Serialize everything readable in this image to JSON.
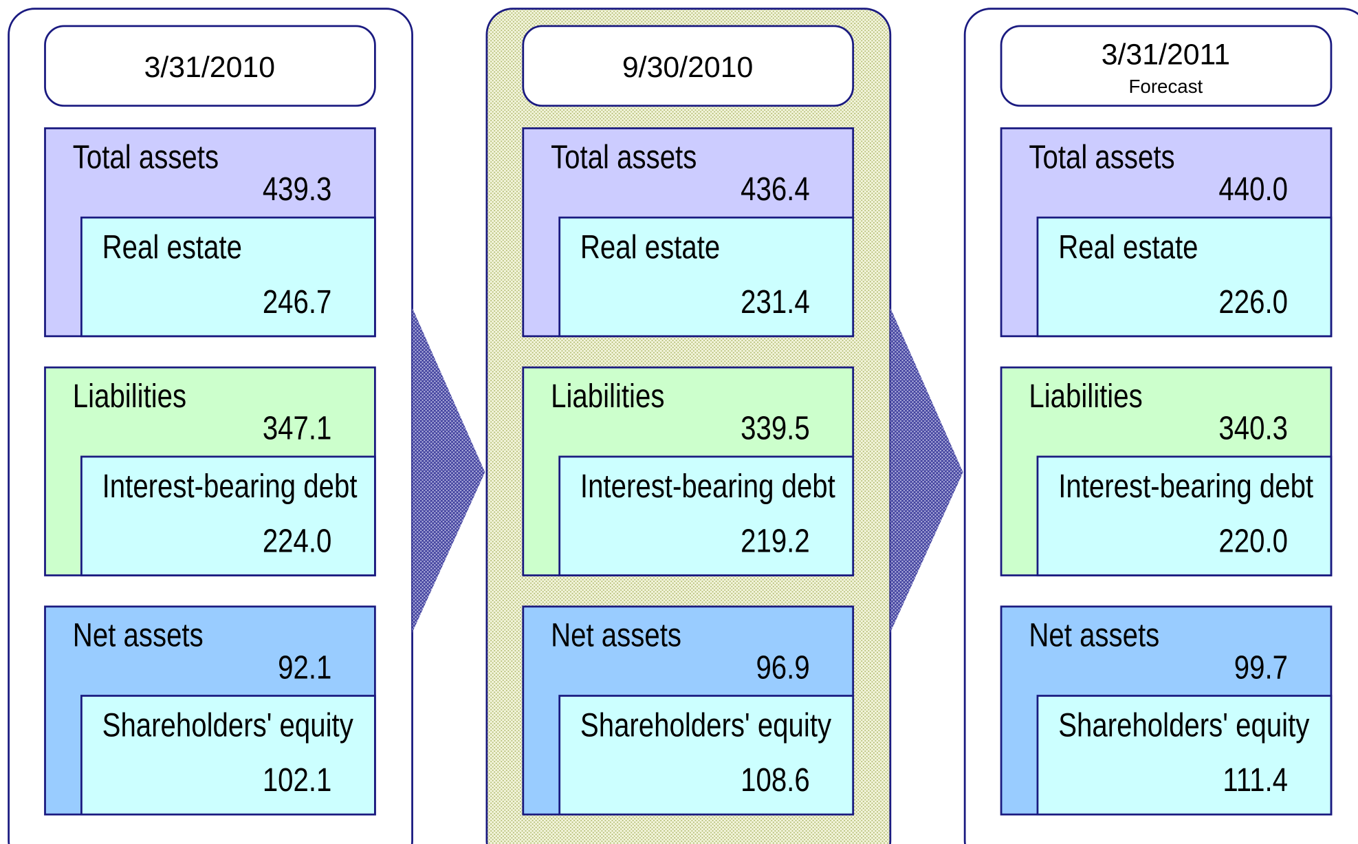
{
  "panels": [
    {
      "date": "3/31/2010",
      "sections": [
        {
          "label": "Total assets",
          "value": "439.3",
          "sub_label": "Real estate",
          "sub_value": "246.7"
        },
        {
          "label": "Liabilities",
          "value": "347.1",
          "sub_label": "Interest-bearing debt",
          "sub_value": "224.0"
        },
        {
          "label": "Net assets",
          "value": "92.1",
          "sub_label": "Shareholders' equity",
          "sub_value": "102.1"
        }
      ]
    },
    {
      "date": "9/30/2010",
      "sections": [
        {
          "label": "Total assets",
          "value": "436.4",
          "sub_label": "Real estate",
          "sub_value": "231.4"
        },
        {
          "label": "Liabilities",
          "value": "339.5",
          "sub_label": "Interest-bearing debt",
          "sub_value": "219.2"
        },
        {
          "label": "Net assets",
          "value": "96.9",
          "sub_label": "Shareholders' equity",
          "sub_value": "108.6"
        }
      ]
    },
    {
      "date": "3/31/2011",
      "note": "Forecast",
      "sections": [
        {
          "label": "Total assets",
          "value": "440.0",
          "sub_label": "Real estate",
          "sub_value": "226.0"
        },
        {
          "label": "Liabilities",
          "value": "340.3",
          "sub_label": "Interest-bearing debt",
          "sub_value": "220.0"
        },
        {
          "label": "Net assets",
          "value": "99.7",
          "sub_label": "Shareholders' equity",
          "sub_value": "111.4"
        }
      ]
    }
  ]
}
